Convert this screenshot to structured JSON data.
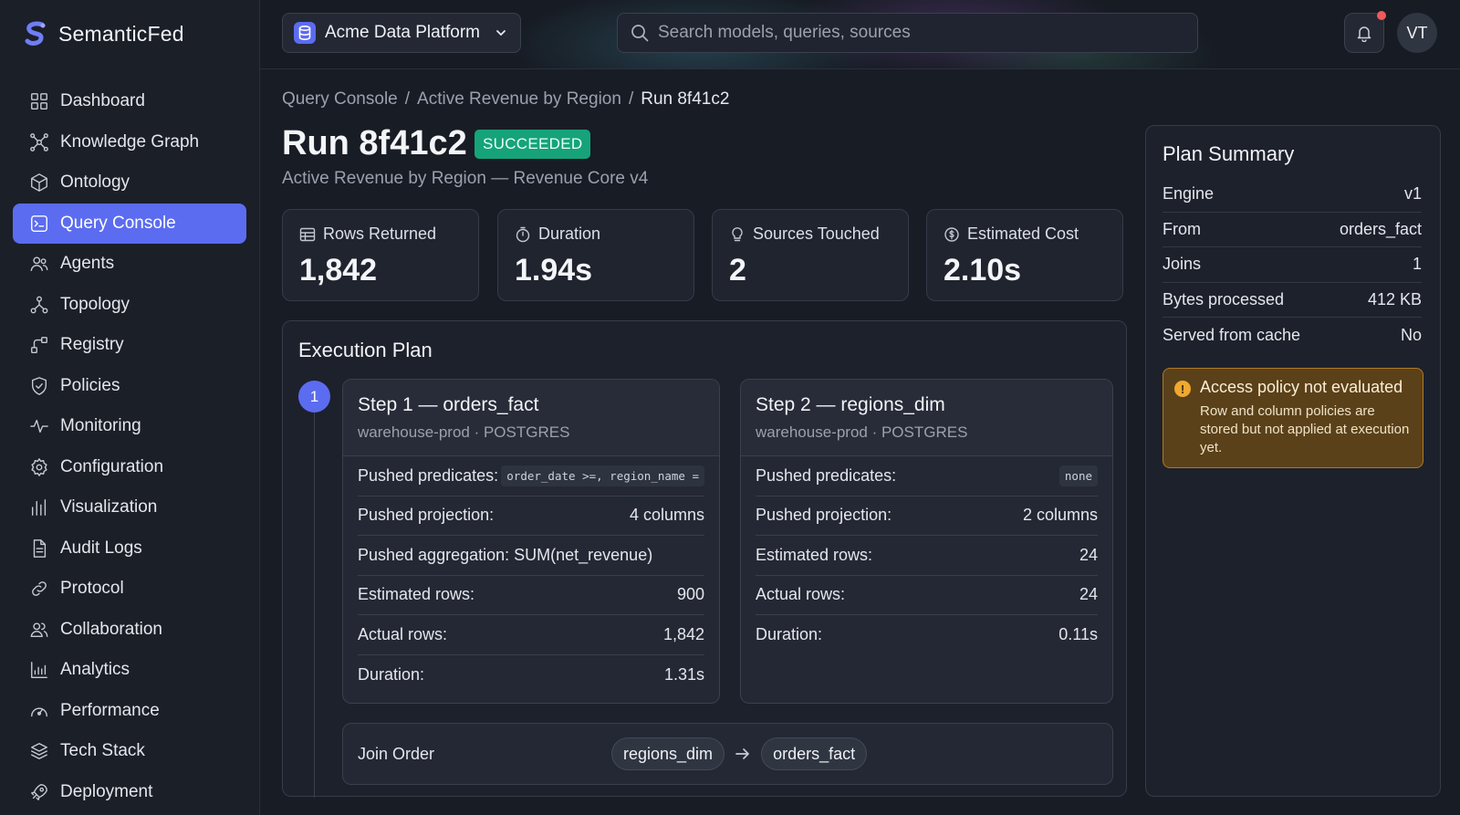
{
  "brand": {
    "name": "SemanticFed"
  },
  "sidebar": {
    "items": [
      {
        "label": "Dashboard",
        "icon": "dashboard-icon"
      },
      {
        "label": "Knowledge Graph",
        "icon": "graph-icon"
      },
      {
        "label": "Ontology",
        "icon": "cube-icon"
      },
      {
        "label": "Query Console",
        "icon": "terminal-icon",
        "active": true
      },
      {
        "label": "Agents",
        "icon": "agents-icon"
      },
      {
        "label": "Topology",
        "icon": "topology-icon"
      },
      {
        "label": "Registry",
        "icon": "registry-icon"
      },
      {
        "label": "Policies",
        "icon": "shield-icon"
      },
      {
        "label": "Monitoring",
        "icon": "activity-icon"
      },
      {
        "label": "Configuration",
        "icon": "gear-icon"
      },
      {
        "label": "Visualization",
        "icon": "bar-chart-icon"
      },
      {
        "label": "Audit Logs",
        "icon": "document-icon"
      },
      {
        "label": "Protocol",
        "icon": "link-icon"
      },
      {
        "label": "Collaboration",
        "icon": "users-icon"
      },
      {
        "label": "Analytics",
        "icon": "analytics-icon"
      },
      {
        "label": "Performance",
        "icon": "gauge-icon"
      },
      {
        "label": "Tech Stack",
        "icon": "layers-icon"
      },
      {
        "label": "Deployment",
        "icon": "rocket-icon"
      }
    ]
  },
  "topbar": {
    "workspace": "Acme Data Platform",
    "search_placeholder": "Search models, queries, sources",
    "avatar_initials": "VT"
  },
  "breadcrumb": {
    "items": [
      "Query Console",
      "Active Revenue by Region",
      "Run 8f41c2"
    ],
    "separator": "/"
  },
  "run": {
    "title": "Run 8f41c2",
    "status": "SUCCEEDED",
    "subtitle": "Active Revenue by Region — Revenue Core v4"
  },
  "stats": [
    {
      "label": "Rows Returned",
      "value": "1,842",
      "icon": "table-icon"
    },
    {
      "label": "Duration",
      "value": "1.94s",
      "icon": "stopwatch-icon"
    },
    {
      "label": "Sources Touched",
      "value": "2",
      "icon": "lightbulb-icon"
    },
    {
      "label": "Estimated Cost",
      "value": "2.10s",
      "icon": "coin-icon"
    }
  ],
  "plan": {
    "title": "Execution Plan",
    "step_number": "1",
    "steps": [
      {
        "name": "Step 1 — orders_fact",
        "source": "warehouse-prod · POSTGRES",
        "rows": [
          {
            "label": "Pushed predicates:",
            "value": "order_date >=, region_name =",
            "code": true
          },
          {
            "label": "Pushed projection:",
            "value": "4 columns"
          },
          {
            "label": "Pushed aggregation: SUM(net_revenue)",
            "value": ""
          },
          {
            "label": "Estimated rows:",
            "value": "900"
          },
          {
            "label": "Actual rows:",
            "value": "1,842"
          },
          {
            "label": "Duration:",
            "value": "1.31s"
          }
        ]
      },
      {
        "name": "Step 2 — regions_dim",
        "source": "warehouse-prod · POSTGRES",
        "rows": [
          {
            "label": "Pushed predicates:",
            "value": "none",
            "code": true
          },
          {
            "label": "Pushed projection:",
            "value": "2 columns"
          },
          {
            "label": "Estimated rows:",
            "value": "24"
          },
          {
            "label": "Actual rows:",
            "value": "24"
          },
          {
            "label": "Duration:",
            "value": "0.11s"
          }
        ]
      }
    ],
    "join": {
      "label": "Join Order",
      "from": "regions_dim",
      "to": "orders_fact"
    }
  },
  "summary": {
    "title": "Plan Summary",
    "rows": [
      {
        "label": "Engine",
        "value": "v1"
      },
      {
        "label": "From",
        "value": "orders_fact"
      },
      {
        "label": "Joins",
        "value": "1"
      },
      {
        "label": "Bytes processed",
        "value": "412 KB"
      },
      {
        "label": "Served from cache",
        "value": "No"
      }
    ],
    "alert": {
      "title": "Access policy not evaluated",
      "body": "Row and column policies are stored but not applied at execution yet.",
      "icon_glyph": "!"
    }
  },
  "colors": {
    "accent": "#5b6cf0",
    "success": "#16a37a",
    "warning": "#f0a830",
    "background": "#181c25"
  }
}
